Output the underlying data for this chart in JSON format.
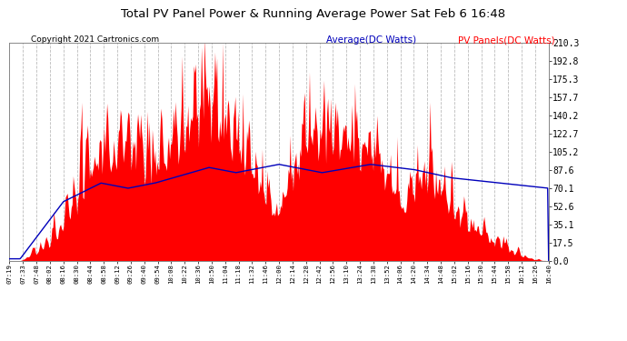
{
  "title": "Total PV Panel Power & Running Average Power Sat Feb 6 16:48",
  "copyright": "Copyright 2021 Cartronics.com",
  "ylabel_right": [
    "0.0",
    "17.5",
    "35.1",
    "52.6",
    "70.1",
    "87.6",
    "105.2",
    "122.7",
    "140.2",
    "157.7",
    "175.3",
    "192.8",
    "210.3"
  ],
  "ymax": 210.3,
  "ymin": 0.0,
  "legend_average": "Average(DC Watts)",
  "legend_pv": "PV Panels(DC Watts)",
  "pv_color": "#ff0000",
  "avg_color": "#0000bb",
  "bg_color": "#ffffff",
  "grid_color": "#bbbbbb",
  "title_color": "#000000",
  "copyright_color": "#000000",
  "legend_avg_color": "#0000bb",
  "legend_pv_color": "#ff0000",
  "x_tick_labels": [
    "07:19",
    "07:33",
    "07:48",
    "08:02",
    "08:16",
    "08:30",
    "08:44",
    "08:58",
    "09:12",
    "09:26",
    "09:40",
    "09:54",
    "10:08",
    "10:22",
    "10:36",
    "10:50",
    "11:04",
    "11:18",
    "11:32",
    "11:46",
    "12:00",
    "12:14",
    "12:28",
    "12:42",
    "12:56",
    "13:10",
    "13:24",
    "13:38",
    "13:52",
    "14:06",
    "14:20",
    "14:34",
    "14:48",
    "15:02",
    "15:16",
    "15:30",
    "15:44",
    "15:58",
    "16:12",
    "16:26",
    "16:40"
  ]
}
